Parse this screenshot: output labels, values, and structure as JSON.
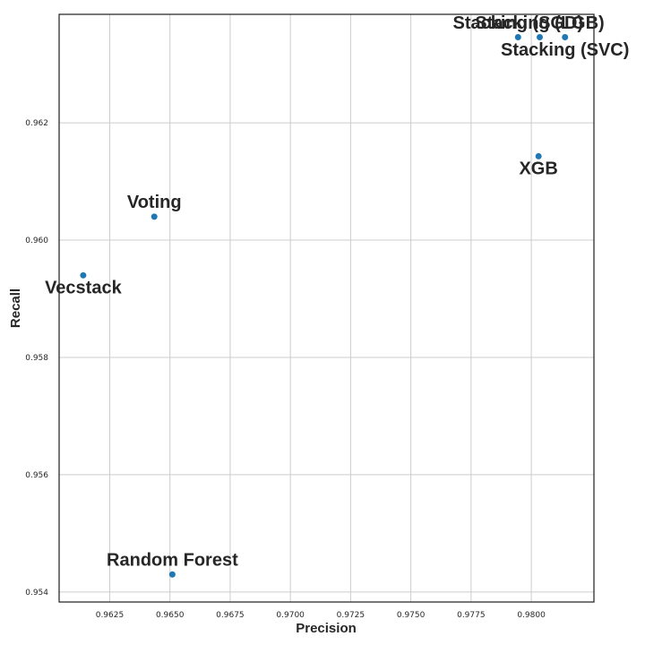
{
  "chart_data": {
    "type": "scatter",
    "xlabel": "Precision",
    "ylabel": "Recall",
    "xlim": [
      0.9604,
      0.9826
    ],
    "ylim": [
      0.95383,
      0.96385
    ],
    "grid": true,
    "x_ticks": [
      "0.9625",
      "0.9650",
      "0.9675",
      "0.9700",
      "0.9725",
      "0.9750",
      "0.9775",
      "0.9800"
    ],
    "y_ticks": [
      "0.954",
      "0.956",
      "0.958",
      "0.960",
      "0.962"
    ],
    "marker_color": "#1f77b4",
    "points": [
      {
        "label": "Stacking (SGD)",
        "x": 0.97945,
        "y": 0.96346
      },
      {
        "label": "Stacking (LGB)",
        "x": 0.98035,
        "y": 0.96346
      },
      {
        "label": "Stacking (SVC)",
        "x": 0.9814,
        "y": 0.96346
      },
      {
        "label": "XGB",
        "x": 0.9803,
        "y": 0.96143
      },
      {
        "label": "Voting",
        "x": 0.96435,
        "y": 0.9604
      },
      {
        "label": "Vecstack",
        "x": 0.9614,
        "y": 0.9594
      },
      {
        "label": "Random Forest",
        "x": 0.9651,
        "y": 0.9543
      }
    ]
  }
}
